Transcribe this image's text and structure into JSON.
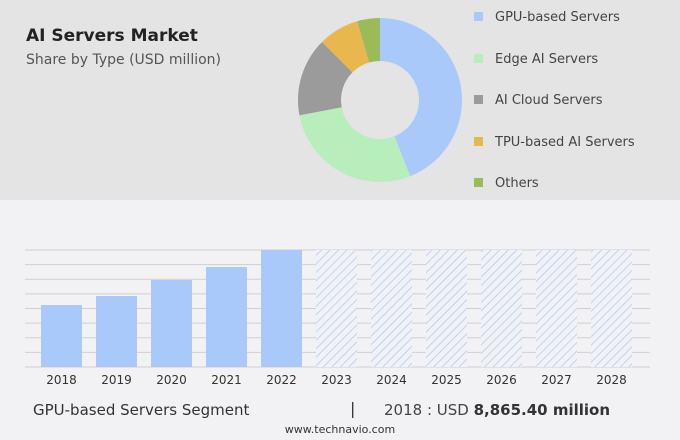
{
  "header": {
    "title": "AI Servers Market",
    "subtitle": "Share by Type (USD million)"
  },
  "chart_data": [
    {
      "type": "pie",
      "title": "AI Servers Market",
      "subtitle": "Share by Type (USD million)",
      "donut": true,
      "categories": [
        "GPU-based Servers",
        "Edge AI Servers",
        "AI Cloud Servers",
        "TPU-based AI Servers",
        "Others"
      ],
      "values": [
        44,
        28,
        15.5,
        8,
        4.5
      ],
      "colors": [
        "#a9c9fb",
        "#b8eebb",
        "#9b9b9b",
        "#e8b84f",
        "#9bbb59"
      ],
      "legend_position": "right"
    },
    {
      "type": "bar",
      "xlabel": "",
      "ylabel": "",
      "title": "GPU-based Servers Segment",
      "categories": [
        "2018",
        "2019",
        "2020",
        "2021",
        "2022",
        "2023",
        "2024",
        "2025",
        "2026",
        "2027",
        "2028"
      ],
      "values": [
        8865.4,
        10150,
        12440,
        14300,
        16730,
        null,
        null,
        null,
        null,
        null,
        null
      ],
      "forecast": [
        false,
        false,
        false,
        false,
        false,
        true,
        true,
        true,
        true,
        true,
        true
      ],
      "ylim": [
        0,
        16730
      ],
      "grid": true,
      "color": "#a9c9fb"
    }
  ],
  "footer": {
    "segment": "GPU-based Servers Segment",
    "separator": "|",
    "year_label": "2018 : USD ",
    "value": "8,865.40 million",
    "site": "www.technavio.com"
  }
}
